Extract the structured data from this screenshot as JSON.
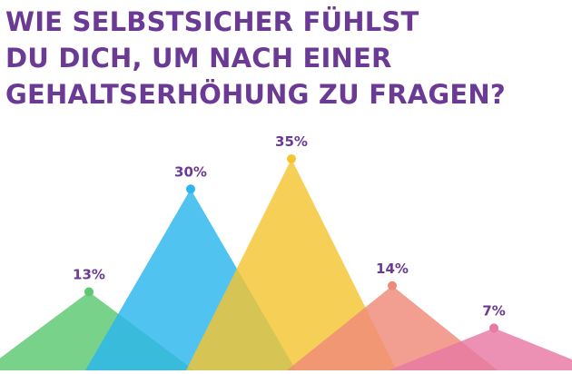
{
  "title_lines": [
    "WIE SELBSTSICHER FÜHLST",
    "DU DICH, UM NACH EINER",
    "GEHALTSERHÖHUNG ZU FRAGEN?"
  ],
  "colors": {
    "title": "#6a3a94",
    "label": "#6a3a94"
  },
  "chart_data": {
    "type": "area",
    "title": "WIE SELBSTSICHER FÜHLST DU DICH, UM NACH EINER GEHALTSERHÖHUNG ZU FRAGEN?",
    "ylim": [
      0,
      35
    ],
    "grid": false,
    "legend": "none",
    "series": [
      {
        "value": 13,
        "label": "13%",
        "color": "#5cc870"
      },
      {
        "value": 30,
        "label": "30%",
        "color": "#2bb6ee"
      },
      {
        "value": 35,
        "label": "35%",
        "color": "#f4c431"
      },
      {
        "value": 14,
        "label": "14%",
        "color": "#ef8a7a"
      },
      {
        "value": 7,
        "label": "7%",
        "color": "#e879a3"
      }
    ]
  }
}
